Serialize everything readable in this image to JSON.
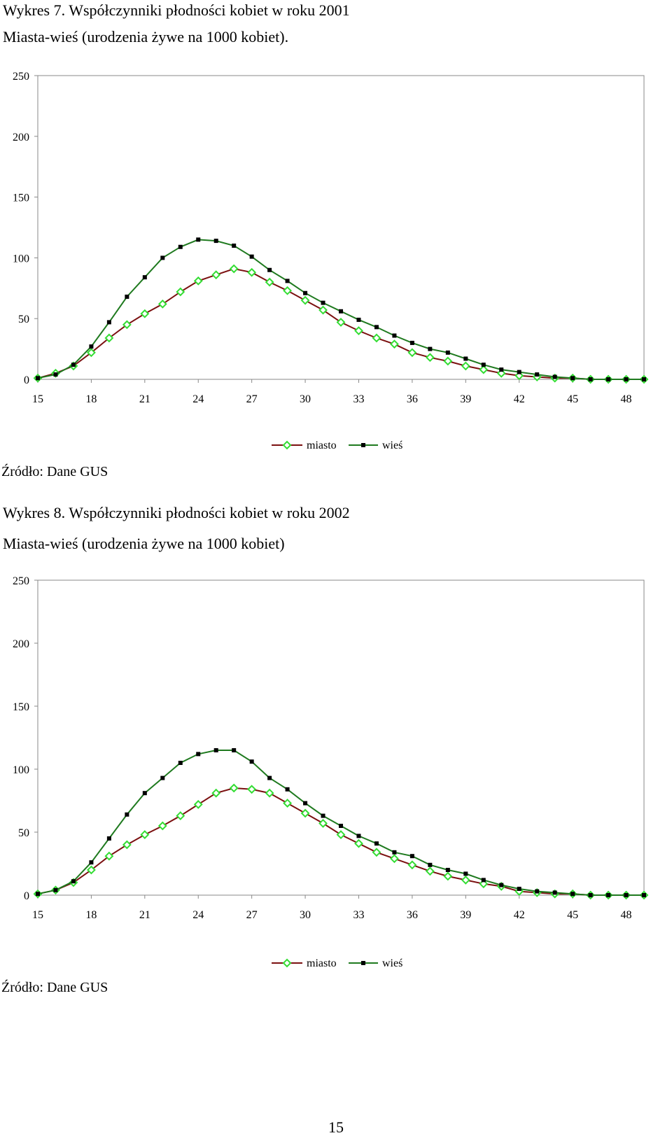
{
  "chart_data": [
    {
      "type": "line",
      "title": "Wykres 7. Współczynniki płodności kobiet w roku 2001",
      "subtitle": "Miasta-wieś (urodzenia żywe na 1000 kobiet).",
      "x": [
        15,
        16,
        17,
        18,
        19,
        20,
        21,
        22,
        23,
        24,
        25,
        26,
        27,
        28,
        29,
        30,
        31,
        32,
        33,
        34,
        35,
        36,
        37,
        38,
        39,
        40,
        41,
        42,
        43,
        44,
        45,
        46,
        47,
        48,
        49
      ],
      "xticks": [
        "15",
        "18",
        "21",
        "24",
        "27",
        "30",
        "33",
        "36",
        "39",
        "42",
        "45",
        "48"
      ],
      "yticks": [
        "0",
        "50",
        "100",
        "150",
        "200",
        "250"
      ],
      "ylim": [
        0,
        250
      ],
      "legend_position": "bottom",
      "series": [
        {
          "name": "miasto",
          "color": "#7b1010",
          "marker_color": "#33dd33",
          "values": [
            1,
            5,
            11,
            22,
            34,
            45,
            54,
            62,
            72,
            81,
            86,
            91,
            88,
            80,
            73,
            65,
            57,
            47,
            40,
            34,
            29,
            22,
            18,
            15,
            11,
            8,
            5,
            3,
            2,
            1,
            1,
            0,
            0,
            0,
            0
          ]
        },
        {
          "name": "wieś",
          "color": "#1f7a1f",
          "marker_color": "#000000",
          "values": [
            1,
            4,
            12,
            27,
            47,
            68,
            84,
            100,
            109,
            115,
            114,
            110,
            101,
            90,
            81,
            71,
            63,
            56,
            49,
            43,
            36,
            30,
            25,
            22,
            17,
            12,
            8,
            6,
            4,
            2,
            1,
            0,
            0,
            0,
            0
          ]
        }
      ]
    },
    {
      "type": "line",
      "title": "Wykres 8. Współczynniki płodności kobiet w roku 2002",
      "subtitle": "Miasta-wieś (urodzenia żywe na 1000 kobiet)",
      "x": [
        15,
        16,
        17,
        18,
        19,
        20,
        21,
        22,
        23,
        24,
        25,
        26,
        27,
        28,
        29,
        30,
        31,
        32,
        33,
        34,
        35,
        36,
        37,
        38,
        39,
        40,
        41,
        42,
        43,
        44,
        45,
        46,
        47,
        48,
        49
      ],
      "xticks": [
        "15",
        "18",
        "21",
        "24",
        "27",
        "30",
        "33",
        "36",
        "39",
        "42",
        "45",
        "48"
      ],
      "yticks": [
        "0",
        "50",
        "100",
        "150",
        "200",
        "250"
      ],
      "ylim": [
        0,
        250
      ],
      "legend_position": "bottom",
      "series": [
        {
          "name": "miasto",
          "color": "#7b1010",
          "marker_color": "#33dd33",
          "values": [
            1,
            4,
            10,
            20,
            31,
            40,
            48,
            55,
            63,
            72,
            81,
            85,
            84,
            81,
            73,
            65,
            57,
            48,
            41,
            34,
            29,
            24,
            19,
            15,
            12,
            9,
            7,
            3,
            2,
            1,
            1,
            0,
            0,
            0,
            0
          ]
        },
        {
          "name": "wieś",
          "color": "#1f7a1f",
          "marker_color": "#000000",
          "values": [
            1,
            4,
            11,
            26,
            45,
            64,
            81,
            93,
            105,
            112,
            115,
            115,
            106,
            93,
            84,
            73,
            63,
            55,
            47,
            41,
            34,
            31,
            24,
            20,
            17,
            12,
            8,
            5,
            3,
            2,
            1,
            0,
            0,
            0,
            0
          ]
        }
      ]
    }
  ],
  "source_note": "Źródło: Dane GUS",
  "page_number": "15"
}
